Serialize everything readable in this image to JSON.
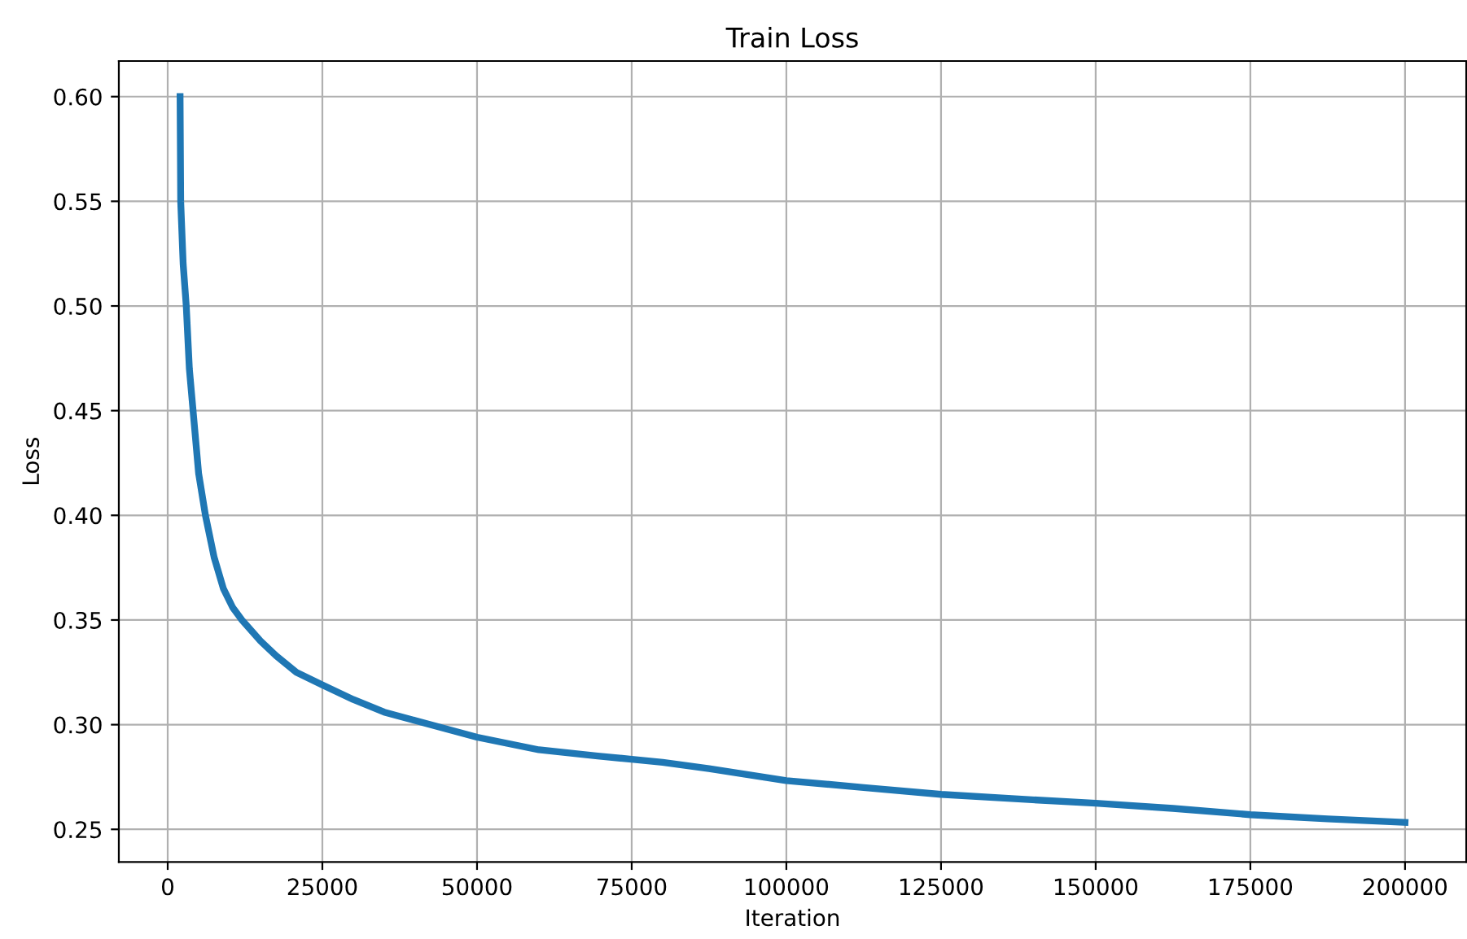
{
  "chart_data": {
    "type": "line",
    "title": "Train Loss",
    "xlabel": "Iteration",
    "ylabel": "Loss",
    "x": [
      2000,
      2100,
      2500,
      3000,
      3500,
      4100,
      5000,
      6100,
      7500,
      9000,
      10500,
      12000,
      15000,
      17500,
      20800,
      25000,
      30000,
      35000,
      40000,
      45000,
      50000,
      55000,
      60000,
      69500,
      75000,
      80000,
      87500,
      100000,
      112500,
      125000,
      137500,
      150000,
      162500,
      175000,
      187500,
      200000
    ],
    "series": [
      {
        "color": "#1f77b4",
        "values": [
          0.6,
          0.55,
          0.52,
          0.5,
          0.47,
          0.45,
          0.42,
          0.4,
          0.38,
          0.365,
          0.356,
          0.35,
          0.34,
          0.333,
          0.325,
          0.319,
          0.312,
          0.306,
          0.302,
          0.298,
          0.294,
          0.291,
          0.288,
          0.285,
          0.2835,
          0.282,
          0.279,
          0.2733,
          0.27,
          0.2667,
          0.2645,
          0.2625,
          0.26,
          0.257,
          0.255,
          0.2533
        ]
      }
    ],
    "xlim": [
      -7900,
      209900
    ],
    "ylim": [
      0.2344,
      0.617
    ],
    "xticks": [
      0,
      25000,
      50000,
      75000,
      100000,
      125000,
      150000,
      175000,
      200000
    ],
    "yticks": [
      {
        "value": 0.25,
        "label": "0.25"
      },
      {
        "value": 0.3,
        "label": "0.30"
      },
      {
        "value": 0.35,
        "label": "0.35"
      },
      {
        "value": 0.4,
        "label": "0.40"
      },
      {
        "value": 0.45,
        "label": "0.45"
      },
      {
        "value": 0.5,
        "label": "0.50"
      },
      {
        "value": 0.55,
        "label": "0.55"
      },
      {
        "value": 0.6,
        "label": "0.60"
      }
    ],
    "grid": true,
    "line_style": "solid"
  }
}
